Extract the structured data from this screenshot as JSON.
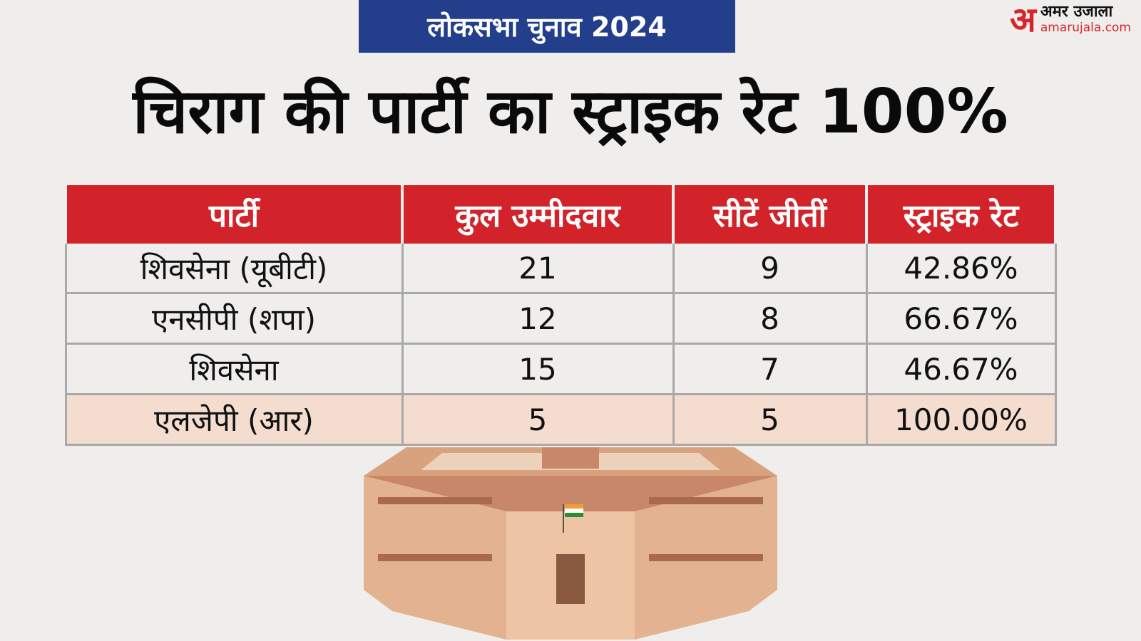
{
  "header": {
    "tag": "लोकसभा चुनाव 2024",
    "logo": {
      "mark": "अ",
      "name": "अमर उजाला",
      "site": "amarujala.com"
    }
  },
  "title": "चिराग की पार्टी का स्ट्राइक रेट 100%",
  "table": {
    "columns": [
      "पार्टी",
      "कुल उम्मीदवार",
      "सीटें जीतीं",
      "स्ट्राइक रेट"
    ],
    "rows": [
      [
        "शिवसेना (यूबीटी)",
        "21",
        "9",
        "42.86%"
      ],
      [
        "एनसीपी (शपा)",
        "12",
        "8",
        "66.67%"
      ],
      [
        "शिवसेना",
        "15",
        "7",
        "46.67%"
      ],
      [
        "एलजेपी (आर)",
        "5",
        "5",
        "100.00%"
      ]
    ]
  }
}
